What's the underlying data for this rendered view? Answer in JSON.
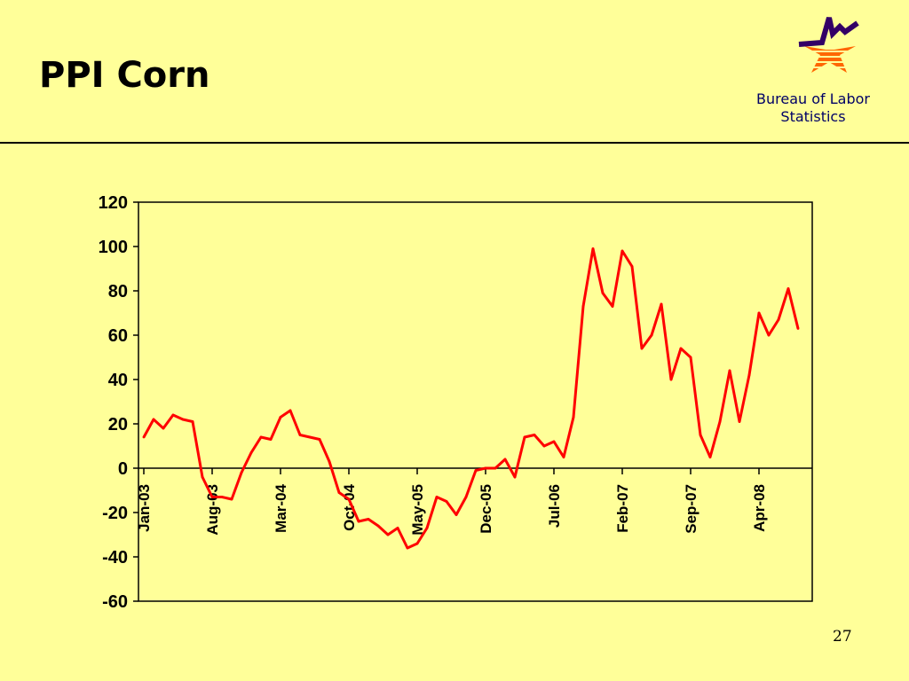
{
  "slide": {
    "title": "PPI Corn",
    "org_line1": "Bureau of Labor",
    "org_line2": "Statistics",
    "page_number": "27"
  },
  "colors": {
    "background": "#ffff99",
    "series_line": "#ff0000",
    "logo_purple": "#330066",
    "logo_orange": "#ff6600"
  },
  "chart_data": {
    "type": "line",
    "title": "",
    "xlabel": "",
    "ylabel": "",
    "ylim": [
      -60,
      120
    ],
    "yticks": [
      120,
      100,
      80,
      60,
      40,
      20,
      0,
      -20,
      -40,
      -60
    ],
    "grid": false,
    "legend": "none",
    "x_tick_labels": [
      {
        "label": "Jan-03",
        "index": 0
      },
      {
        "label": "Aug-03",
        "index": 7
      },
      {
        "label": "Mar-04",
        "index": 14
      },
      {
        "label": "Oct-04",
        "index": 21
      },
      {
        "label": "May-05",
        "index": 28
      },
      {
        "label": "Dec-05",
        "index": 35
      },
      {
        "label": "Jul-06",
        "index": 42
      },
      {
        "label": "Feb-07",
        "index": 49
      },
      {
        "label": "Sep-07",
        "index": 56
      },
      {
        "label": "Apr-08",
        "index": 63
      }
    ],
    "series": [
      {
        "values": [
          14,
          22,
          18,
          24,
          22,
          21,
          -4,
          -13,
          -13,
          -14,
          -2,
          7,
          14,
          13,
          23,
          26,
          15,
          14,
          13,
          3,
          -11,
          -14,
          -24,
          -23,
          -26,
          -30,
          -27,
          -36,
          -34,
          -27,
          -13,
          -15,
          -21,
          -13,
          -1,
          0,
          0,
          4,
          -4,
          14,
          15,
          10,
          12,
          5,
          23,
          73,
          99,
          79,
          73,
          98,
          91,
          54,
          60,
          74,
          40,
          54,
          50,
          15,
          5,
          21,
          44,
          21,
          42,
          70,
          60,
          67,
          81,
          63
        ]
      }
    ]
  }
}
